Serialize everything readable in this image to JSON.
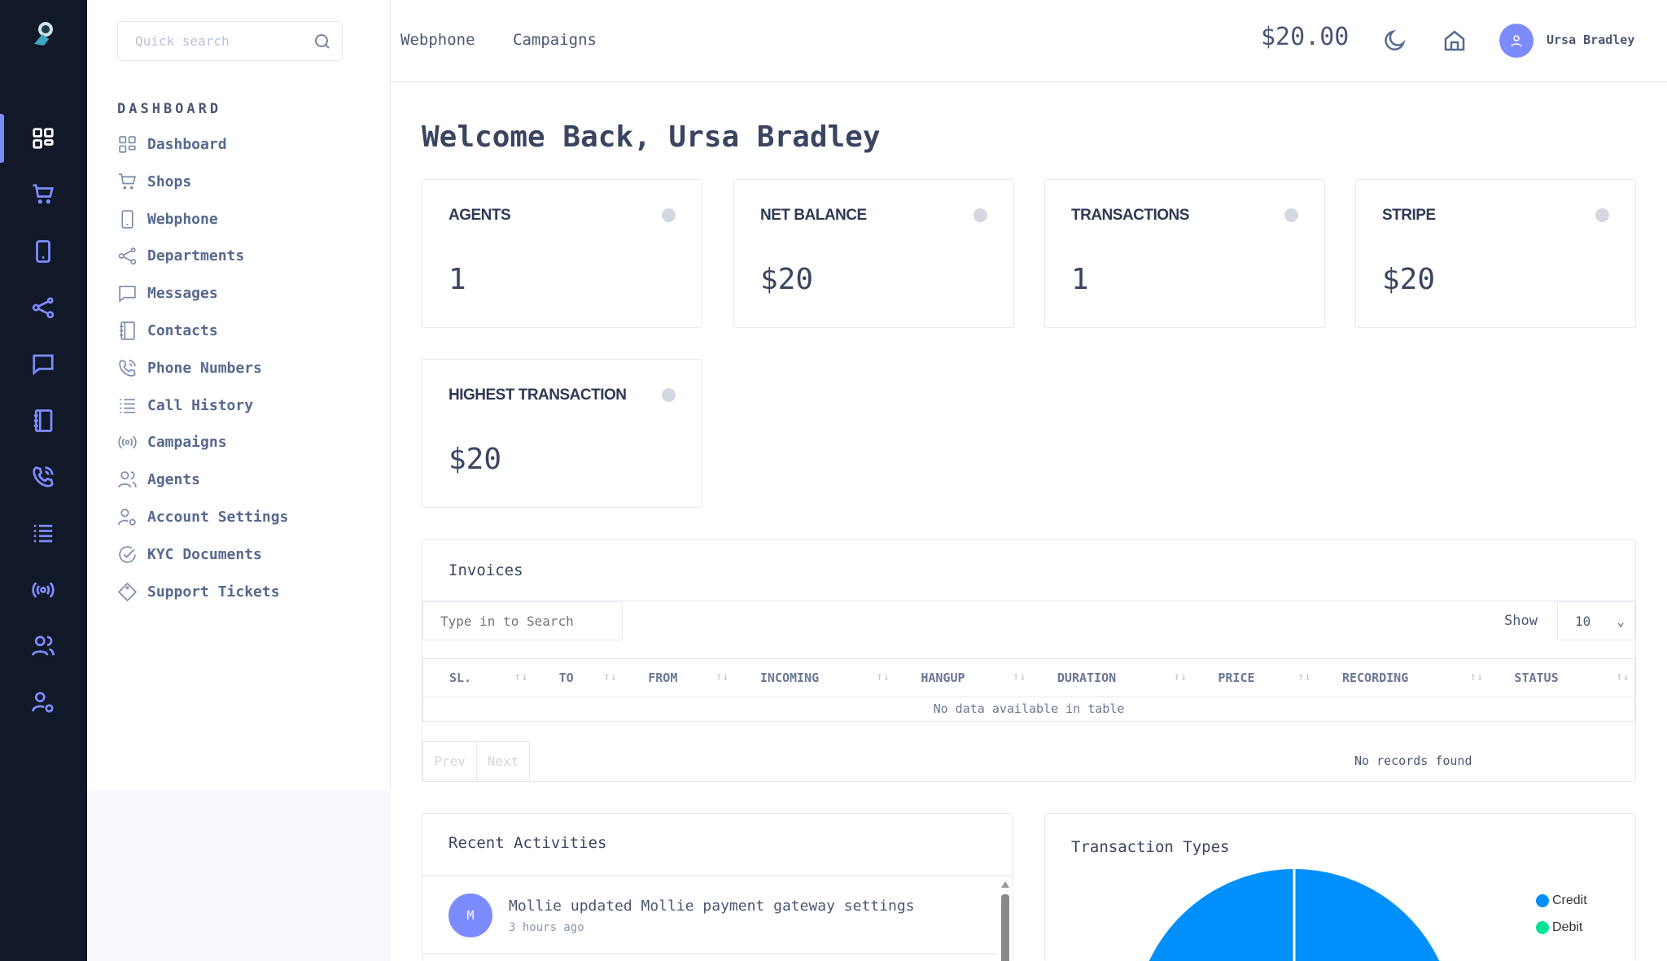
{
  "header": {
    "nav": [
      "Webphone",
      "Campaigns"
    ],
    "balance": "$20.00",
    "user_name": "Ursa Bradley",
    "search_placeholder": "Quick search"
  },
  "sidebar": {
    "section": "DASHBOARD",
    "items": [
      {
        "label": "Dashboard",
        "icon": "grid-icon"
      },
      {
        "label": "Shops",
        "icon": "cart-icon"
      },
      {
        "label": "Webphone",
        "icon": "phone-device-icon"
      },
      {
        "label": "Departments",
        "icon": "share-nodes-icon"
      },
      {
        "label": "Messages",
        "icon": "chat-icon"
      },
      {
        "label": "Contacts",
        "icon": "address-book-icon"
      },
      {
        "label": "Phone Numbers",
        "icon": "phone-call-icon"
      },
      {
        "label": "Call History",
        "icon": "list-icon"
      },
      {
        "label": "Campaigns",
        "icon": "broadcast-icon"
      },
      {
        "label": "Agents",
        "icon": "users-icon"
      },
      {
        "label": "Account Settings",
        "icon": "user-gear-icon"
      },
      {
        "label": "KYC Documents",
        "icon": "check-circle-icon"
      },
      {
        "label": "Support Tickets",
        "icon": "tag-icon"
      }
    ]
  },
  "main": {
    "welcome": "Welcome Back, Ursa Bradley",
    "stats": [
      {
        "title": "AGENTS",
        "value": "1"
      },
      {
        "title": "NET BALANCE",
        "value": "$20"
      },
      {
        "title": "TRANSACTIONS",
        "value": "1"
      },
      {
        "title": "STRIPE",
        "value": "$20"
      },
      {
        "title": "HIGHEST TRANSACTION",
        "value": "$20"
      }
    ],
    "invoices": {
      "title": "Invoices",
      "search_placeholder": "Type in to Search",
      "show_label": "Show",
      "page_size": "10",
      "columns": [
        "SL.",
        "TO",
        "FROM",
        "INCOMING",
        "HANGUP",
        "DURATION",
        "PRICE",
        "RECORDING",
        "STATUS"
      ],
      "empty": "No data available in table",
      "prev": "Prev",
      "next": "Next",
      "records": "No records found"
    },
    "activities": {
      "title": "Recent Activities",
      "items": [
        {
          "initial": "M",
          "text": "Mollie updated Mollie payment gateway settings",
          "time": "3 hours ago"
        }
      ]
    },
    "transaction_types": {
      "title": "Transaction Types"
    }
  },
  "chart_data": {
    "type": "pie",
    "title": "Transaction Types",
    "categories": [
      "Credit",
      "Debit"
    ],
    "values": [
      1,
      0
    ],
    "colors": [
      "#008ffb",
      "#00e396"
    ],
    "legend": "right"
  }
}
